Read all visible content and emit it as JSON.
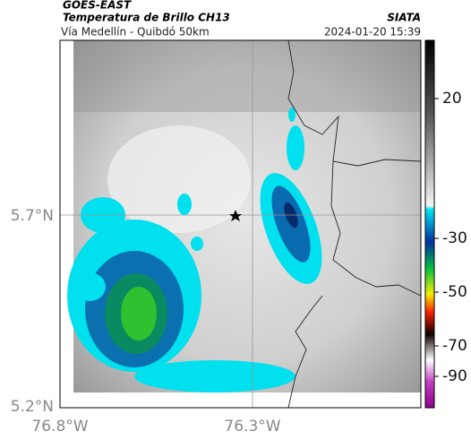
{
  "header": {
    "left_title": "GOES-EAST",
    "left_subtitle": "Temperatura de Brillo CH13",
    "left_caption": "Vía Medellín - Quibdó 50km",
    "right_title": "SIATA",
    "right_caption": "2024-01-20 15:39"
  },
  "map": {
    "lat_ticks": [
      "5.7°N",
      "5.2°N"
    ],
    "lon_ticks": [
      "76.8°W",
      "76.3°W"
    ]
  },
  "colorbar": {
    "ticks": [
      20,
      -30,
      -50,
      -70,
      -90
    ]
  }
}
